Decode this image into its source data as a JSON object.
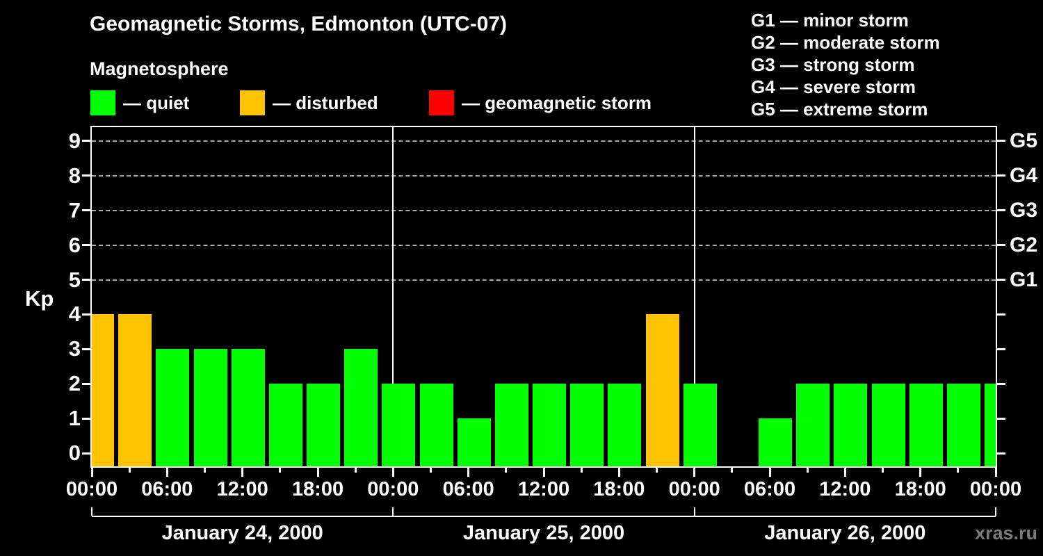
{
  "header": {
    "title": "Geomagnetic Storms, Edmonton (UTC-07)",
    "subtitle": "Magnetosphere"
  },
  "legend": {
    "items": [
      {
        "name": "quiet",
        "label": "— quiet",
        "color": "#00ff00",
        "x": 130
      },
      {
        "name": "disturbed",
        "label": "— disturbed",
        "color": "#ffc200",
        "x": 345
      },
      {
        "name": "storm",
        "label": "— geomagnetic storm",
        "color": "#ff0000",
        "x": 617
      }
    ]
  },
  "g_legend": {
    "items": [
      {
        "code": "G1",
        "label": "minor storm"
      },
      {
        "code": "G2",
        "label": "moderate storm"
      },
      {
        "code": "G3",
        "label": "strong storm"
      },
      {
        "code": "G4",
        "label": "severe storm"
      },
      {
        "code": "G5",
        "label": "extreme storm"
      }
    ]
  },
  "chart_data": {
    "type": "bar",
    "title": "Geomagnetic Storms, Edmonton (UTC-07)",
    "ylabel": "Kp",
    "ylim": [
      -0.5,
      9.5
    ],
    "y_ticks": [
      0,
      1,
      2,
      3,
      4,
      5,
      6,
      7,
      8,
      9
    ],
    "grid_levels": [
      5,
      6,
      7,
      8,
      9
    ],
    "right_axis_labels": [
      {
        "label": "G1",
        "kp": 5
      },
      {
        "label": "G2",
        "kp": 6
      },
      {
        "label": "G3",
        "kp": 7
      },
      {
        "label": "G4",
        "kp": 8
      },
      {
        "label": "G5",
        "kp": 9
      }
    ],
    "x_interval_hours": 3,
    "x_major_tick_hours": 6,
    "x_tick_labels": [
      "00:00",
      "06:00",
      "12:00",
      "18:00",
      "00:00",
      "06:00",
      "12:00",
      "18:00",
      "00:00",
      "06:00",
      "12:00",
      "18:00",
      "00:00"
    ],
    "days": [
      {
        "date": "January 24, 2000",
        "values": [
          4,
          4,
          3,
          3,
          3,
          2,
          2,
          3
        ]
      },
      {
        "date": "January 25, 2000",
        "values": [
          2,
          2,
          1,
          2,
          2,
          2,
          2,
          4
        ]
      },
      {
        "date": "January 26, 2000",
        "values": [
          2,
          0,
          1,
          2,
          2,
          2,
          2,
          2
        ]
      }
    ],
    "trailing_value": 2,
    "colors": {
      "quiet": "#00ff00",
      "disturbed": "#ffc200",
      "storm": "#ff0000"
    },
    "color_rule": {
      "disturbed_min": 4,
      "storm_min": 5
    },
    "legend_position": "top",
    "grid": "dashed horizontal at G1-G5 levels only"
  },
  "watermark": "xras.ru"
}
